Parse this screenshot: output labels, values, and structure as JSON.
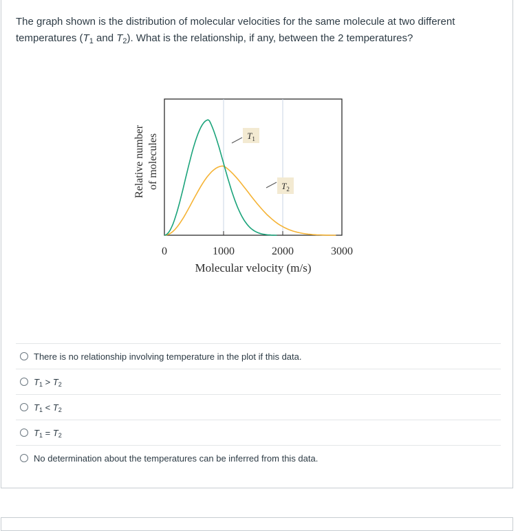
{
  "question": {
    "text_before": "The graph shown is the distribution of molecular velocities for the same molecule at two different temperatures (",
    "t1_var": "T",
    "t1_sub": "1",
    "and": " and ",
    "t2_var": "T",
    "t2_sub": "2",
    "text_after": "). What is the relationship, if any, between the 2 temperatures?"
  },
  "chart_data": {
    "type": "line",
    "xlabel": "Molecular velocity (m/s)",
    "ylabel_line1": "Relative number",
    "ylabel_line2": "of molecules",
    "x_ticks": [
      "0",
      "1000",
      "2000",
      "3000"
    ],
    "xlim": [
      0,
      3000
    ],
    "grid": "vertical lines at 1000 and 2000",
    "series": [
      {
        "name": "T1",
        "label_var": "T",
        "label_sub": "1",
        "color": "#1aa37a",
        "peak_x": 750,
        "peak_y": 1.0,
        "end_x": 1900
      },
      {
        "name": "T2",
        "label_var": "T",
        "label_sub": "2",
        "color": "#f5b335",
        "peak_x": 1000,
        "peak_y": 0.6,
        "end_x": 2900
      }
    ]
  },
  "answers": [
    {
      "type": "text",
      "text": "There is no relationship involving temperature in the plot if this data."
    },
    {
      "type": "relation",
      "left_var": "T",
      "left_sub": "1",
      "op": " > ",
      "right_var": "T",
      "right_sub": "2"
    },
    {
      "type": "relation",
      "left_var": "T",
      "left_sub": "1",
      "op": " < ",
      "right_var": "T",
      "right_sub": "2"
    },
    {
      "type": "relation",
      "left_var": "T",
      "left_sub": "1",
      "op": " = ",
      "right_var": "T",
      "right_sub": "2"
    },
    {
      "type": "text",
      "text": "No determination about the temperatures can be inferred from this data."
    }
  ]
}
